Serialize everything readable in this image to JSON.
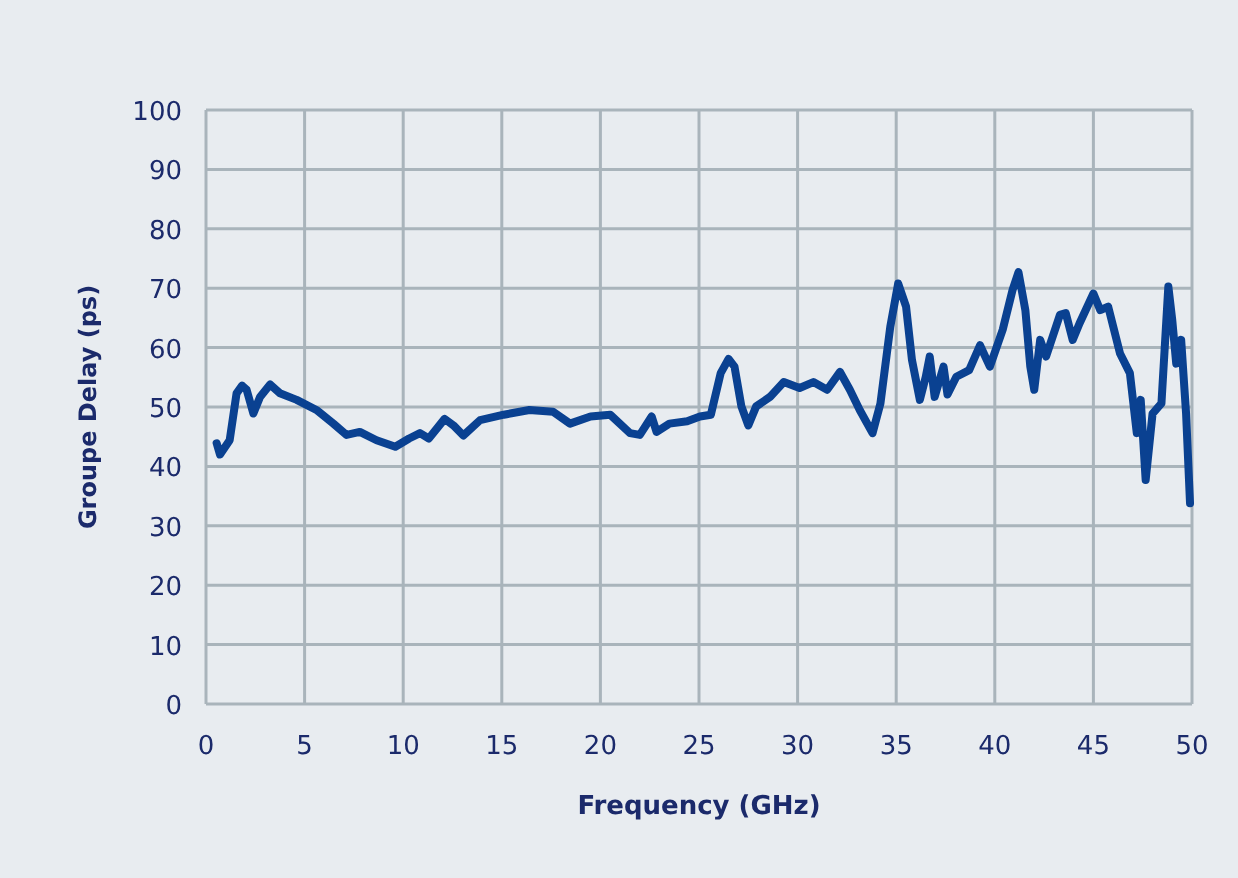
{
  "chart_data": {
    "type": "line",
    "xlabel": "Frequency (GHz)",
    "ylabel": "Groupe Delay (ps)",
    "xlim": [
      0,
      50
    ],
    "xticks": [
      0,
      5,
      10,
      15,
      20,
      25,
      30,
      35,
      40,
      45,
      50
    ],
    "ylim": [
      0,
      100
    ],
    "yticks": [
      0,
      10,
      20,
      30,
      40,
      50,
      60,
      70,
      80,
      90,
      100
    ],
    "grid": true,
    "line_style": "solid",
    "series": [
      {
        "color": "#0a4191",
        "x": [
          0.54,
          0.71,
          1.2,
          1.55,
          1.83,
          2.06,
          2.4,
          2.74,
          3.25,
          3.75,
          4.6,
          5.6,
          6.46,
          7.13,
          7.8,
          8.65,
          9.6,
          10.3,
          10.85,
          11.3,
          12.1,
          12.55,
          13.05,
          13.9,
          15.1,
          16.4,
          17.6,
          18.46,
          19.5,
          20.5,
          21.5,
          22.0,
          22.6,
          22.85,
          23.5,
          24.4,
          25.05,
          25.6,
          26.1,
          26.5,
          26.8,
          27.15,
          27.5,
          27.9,
          28.6,
          29.3,
          30.1,
          30.8,
          31.5,
          32.15,
          32.65,
          33.15,
          33.8,
          34.2,
          34.7,
          35.1,
          35.5,
          35.8,
          36.2,
          36.5,
          36.7,
          36.95,
          37.4,
          37.6,
          38.05,
          38.7,
          39.25,
          39.75,
          40.4,
          40.9,
          41.2,
          41.55,
          41.8,
          42.0,
          42.3,
          42.6,
          43.3,
          43.6,
          43.95,
          44.3,
          45.0,
          45.35,
          45.75,
          46.35,
          46.85,
          47.2,
          47.4,
          47.65,
          48.0,
          48.45,
          48.8,
          49.0,
          49.2,
          49.45,
          49.7,
          49.9
        ],
        "values": [
          43.9,
          42.0,
          44.4,
          52.3,
          53.6,
          52.9,
          48.9,
          51.7,
          53.8,
          52.3,
          51.2,
          49.5,
          47.2,
          45.3,
          45.8,
          44.4,
          43.3,
          44.7,
          45.6,
          44.7,
          48.0,
          46.9,
          45.2,
          47.8,
          48.7,
          49.5,
          49.2,
          47.2,
          48.4,
          48.7,
          45.6,
          45.3,
          48.4,
          45.8,
          47.2,
          47.6,
          48.4,
          48.7,
          55.7,
          58.1,
          56.8,
          50.1,
          46.9,
          50.1,
          51.7,
          54.2,
          53.2,
          54.2,
          52.9,
          55.9,
          52.9,
          49.5,
          45.6,
          50.6,
          63.5,
          70.8,
          66.9,
          57.9,
          51.2,
          55.1,
          58.5,
          51.7,
          56.8,
          52.1,
          55.1,
          56.2,
          60.4,
          56.8,
          63.0,
          69.7,
          72.7,
          66.3,
          56.8,
          52.9,
          61.3,
          58.5,
          65.5,
          65.8,
          61.3,
          64.1,
          69.1,
          66.3,
          66.9,
          59.0,
          55.7,
          45.6,
          51.2,
          37.7,
          48.9,
          50.6,
          70.3,
          64.6,
          57.3,
          61.3,
          48.9,
          33.8
        ]
      }
    ]
  }
}
